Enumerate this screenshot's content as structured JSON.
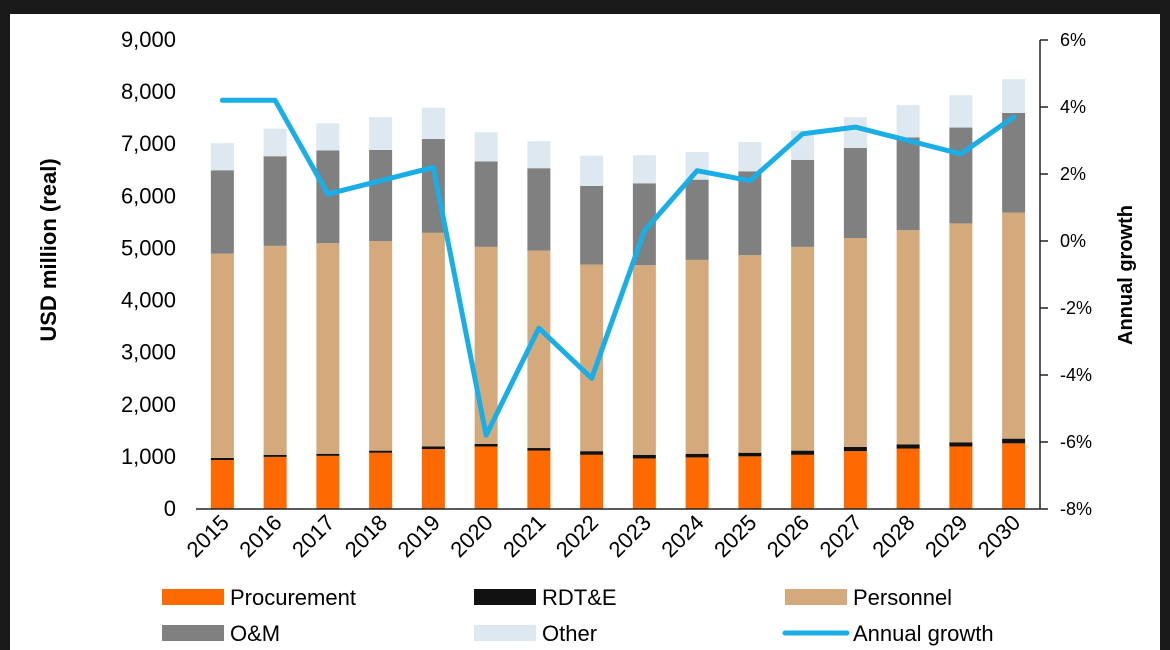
{
  "chart_data": {
    "type": "bar",
    "stacked": true,
    "categories": [
      "2015",
      "2016",
      "2017",
      "2018",
      "2019",
      "2020",
      "2021",
      "2022",
      "2023",
      "2024",
      "2025",
      "2026",
      "2027",
      "2028",
      "2029",
      "2030"
    ],
    "series": [
      {
        "name": "Procurement",
        "color": "#ff6a00",
        "values": [
          940,
          1000,
          1020,
          1080,
          1150,
          1200,
          1120,
          1040,
          970,
          990,
          1010,
          1040,
          1110,
          1160,
          1200,
          1260
        ]
      },
      {
        "name": "RDT&E",
        "color": "#111111",
        "values": [
          40,
          40,
          40,
          40,
          50,
          50,
          50,
          70,
          70,
          70,
          70,
          80,
          80,
          80,
          80,
          90
        ]
      },
      {
        "name": "Personnel",
        "color": "#d4aa7d",
        "values": [
          3920,
          4010,
          4040,
          4020,
          4100,
          3780,
          3790,
          3580,
          3640,
          3720,
          3790,
          3910,
          4010,
          4110,
          4200,
          4340
        ]
      },
      {
        "name": "O&M",
        "color": "#808080",
        "values": [
          1600,
          1720,
          1780,
          1750,
          1800,
          1640,
          1580,
          1510,
          1570,
          1540,
          1610,
          1670,
          1730,
          1780,
          1840,
          1910
        ]
      },
      {
        "name": "Other",
        "color": "#dde8f0",
        "values": [
          520,
          530,
          520,
          630,
          600,
          560,
          520,
          580,
          540,
          530,
          560,
          560,
          590,
          620,
          620,
          650
        ]
      }
    ],
    "line": {
      "name": "Annual growth",
      "color": "#1aaee6",
      "values": [
        4.2,
        4.2,
        1.4,
        1.8,
        2.2,
        -5.8,
        -2.6,
        -4.1,
        0.3,
        2.1,
        1.8,
        3.2,
        3.4,
        3.0,
        2.6,
        3.7
      ]
    },
    "ylabel": "USD million (real)",
    "y2label": "Annual growth",
    "ylim": [
      0,
      9000
    ],
    "y2lim": [
      -8,
      6
    ],
    "yticks": [
      "0",
      "1,000",
      "2,000",
      "3,000",
      "4,000",
      "5,000",
      "6,000",
      "7,000",
      "8,000",
      "9,000"
    ],
    "y2ticks": [
      "-8%",
      "-6%",
      "-4%",
      "-2%",
      "0%",
      "2%",
      "4%",
      "6%"
    ],
    "grid": false,
    "legend_position": "bottom"
  }
}
